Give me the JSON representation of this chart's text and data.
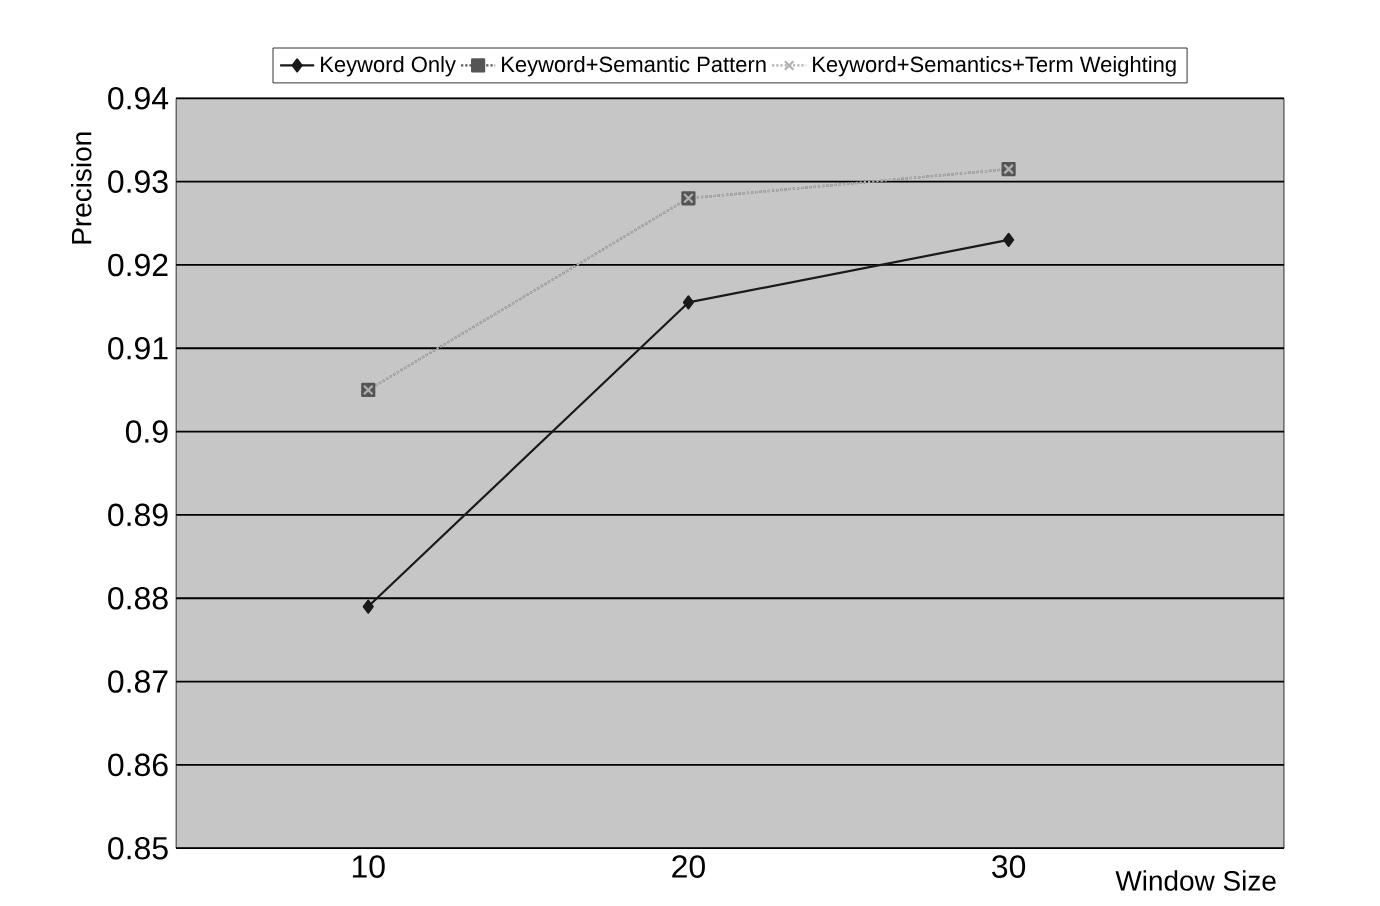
{
  "chart_data": {
    "type": "line",
    "xlabel": "Window Size",
    "ylabel": "Precision",
    "categories": [
      "10",
      "20",
      "30"
    ],
    "series": [
      {
        "name": "Keyword Only",
        "color": "#1a1a1a",
        "marker": "diamond",
        "line_style": "solid",
        "values": [
          0.879,
          0.9155,
          0.923
        ]
      },
      {
        "name": "Keyword+Semantic Pattern",
        "color": "#555555",
        "marker": "square",
        "line_style": "dotted",
        "values": [
          0.905,
          0.928,
          0.9315
        ]
      },
      {
        "name": "Keyword+Semantics+Term Weighting",
        "color": "#b0b0b0",
        "marker": "cross",
        "line_style": "dotted",
        "values": [
          0.905,
          0.928,
          0.9315
        ]
      }
    ],
    "ylim": [
      0.85,
      0.94
    ],
    "yticks": [
      0.85,
      0.86,
      0.87,
      0.88,
      0.89,
      0.9,
      0.91,
      0.92,
      0.93,
      0.94
    ],
    "grid": "y",
    "legend": "top"
  }
}
